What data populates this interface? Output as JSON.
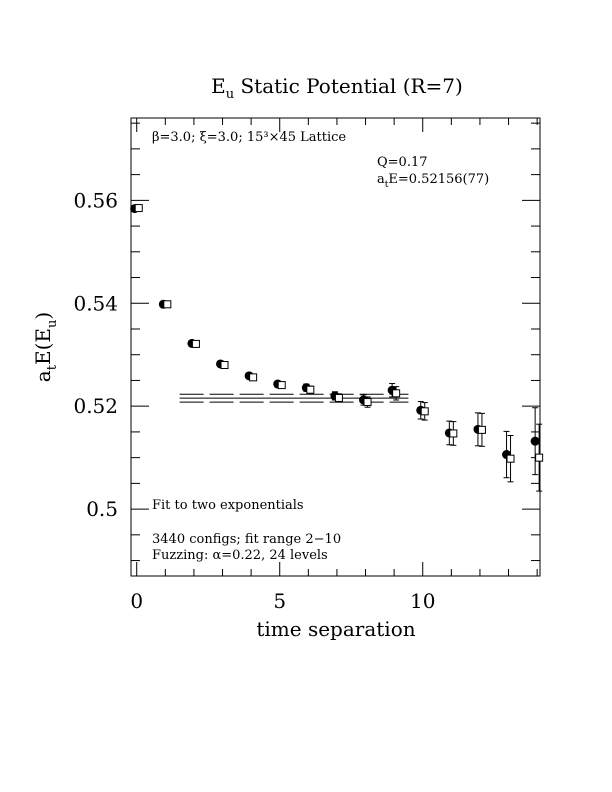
{
  "chart_data": {
    "type": "scatter",
    "title_main": "E",
    "title_sub": "u",
    "title_rest": " Static Potential (R=7)",
    "xlabel": "time separation",
    "ylabel_a": "a",
    "ylabel_t": "t",
    "ylabel_e": "E(E",
    "ylabel_u": "u",
    "ylabel_close": ")",
    "xlim": [
      -0.2,
      14.1
    ],
    "ylim": [
      0.487,
      0.576
    ],
    "x_ticks": [
      0,
      5,
      10
    ],
    "x_tick_labels": [
      "0",
      "5",
      "10"
    ],
    "y_ticks": [
      0.5,
      0.52,
      0.54,
      0.56
    ],
    "y_tick_labels": [
      "0.5",
      "0.52",
      "0.54",
      "0.56"
    ],
    "lattice_text": "β=3.0; ξ=3.0; 15³×45 Lattice",
    "q_text": "Q=0.17",
    "fit_result_a": "a",
    "fit_result_t": "t",
    "fit_result_rest": "E=0.52156(77)",
    "fit_text_1": "Fit to two exponentials",
    "fit_text_2": "3440 configs; fit range 2−10",
    "fit_text_3": "Fuzzing: α=0.22, 24 levels",
    "fit": {
      "x_start": 1.5,
      "x_end": 9.5,
      "center": 0.52156,
      "error": 0.00077
    },
    "series": [
      {
        "marker": "circle",
        "points": [
          {
            "x": 0,
            "y": 0.5584,
            "err": 0.0003
          },
          {
            "x": 1,
            "y": 0.5398,
            "err": 0.0003
          },
          {
            "x": 2,
            "y": 0.5322,
            "err": 0.0004
          },
          {
            "x": 3,
            "y": 0.5282,
            "err": 0.0004
          },
          {
            "x": 4,
            "y": 0.5259,
            "err": 0.0005
          },
          {
            "x": 5,
            "y": 0.5243,
            "err": 0.0006
          },
          {
            "x": 6,
            "y": 0.5236,
            "err": 0.0007
          },
          {
            "x": 7,
            "y": 0.522,
            "err": 0.0008
          },
          {
            "x": 8,
            "y": 0.5212,
            "err": 0.001
          },
          {
            "x": 9,
            "y": 0.5231,
            "err": 0.0013
          },
          {
            "x": 10,
            "y": 0.5192,
            "err": 0.0017
          },
          {
            "x": 11,
            "y": 0.5148,
            "err": 0.0023
          },
          {
            "x": 12,
            "y": 0.5155,
            "err": 0.0032
          },
          {
            "x": 13,
            "y": 0.5106,
            "err": 0.0045
          },
          {
            "x": 14,
            "y": 0.5132,
            "err": 0.0065
          }
        ]
      },
      {
        "marker": "square",
        "points": [
          {
            "x": 0,
            "y": 0.5585,
            "err": 0.0003
          },
          {
            "x": 1,
            "y": 0.5398,
            "err": 0.0003
          },
          {
            "x": 2,
            "y": 0.5321,
            "err": 0.0004
          },
          {
            "x": 3,
            "y": 0.528,
            "err": 0.0004
          },
          {
            "x": 4,
            "y": 0.5256,
            "err": 0.0005
          },
          {
            "x": 5,
            "y": 0.5241,
            "err": 0.0006
          },
          {
            "x": 6,
            "y": 0.5232,
            "err": 0.0007
          },
          {
            "x": 7,
            "y": 0.5216,
            "err": 0.0008
          },
          {
            "x": 8,
            "y": 0.5208,
            "err": 0.001
          },
          {
            "x": 9,
            "y": 0.5225,
            "err": 0.0013
          },
          {
            "x": 10,
            "y": 0.519,
            "err": 0.0017
          },
          {
            "x": 11,
            "y": 0.5147,
            "err": 0.0023
          },
          {
            "x": 12,
            "y": 0.5154,
            "err": 0.0032
          },
          {
            "x": 13,
            "y": 0.5098,
            "err": 0.0045
          },
          {
            "x": 14,
            "y": 0.51,
            "err": 0.0065
          }
        ]
      }
    ]
  }
}
